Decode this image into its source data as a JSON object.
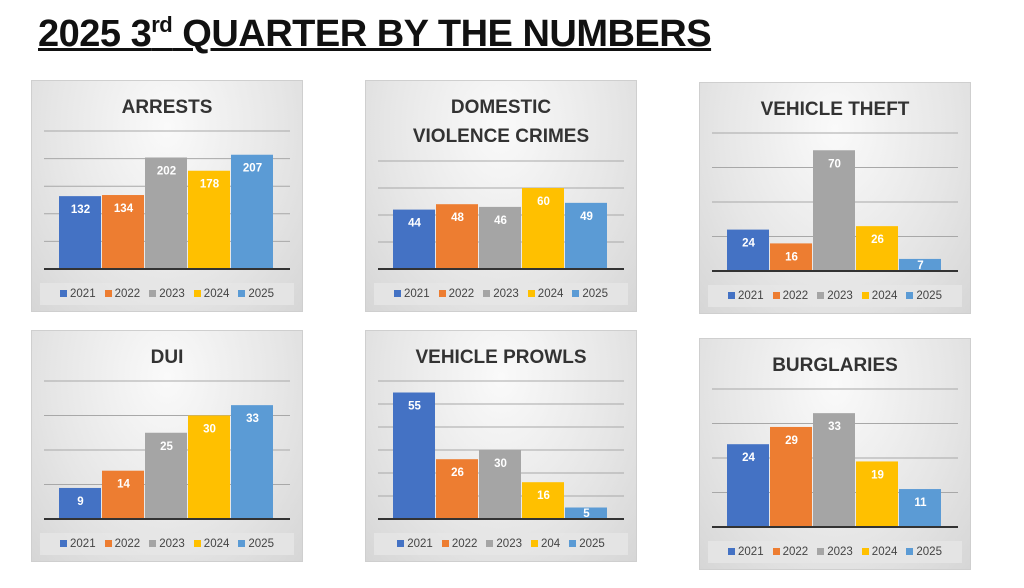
{
  "page_title": {
    "main1": "2025 3",
    "sup": "rd",
    "main2": " QUARTER BY THE NUMBERS"
  },
  "colors": [
    "#4472c4",
    "#ed7d31",
    "#a5a5a5",
    "#ffc000",
    "#5b9bd5"
  ],
  "chart_data": [
    {
      "type": "bar",
      "title": "ARRESTS",
      "categories": [
        "2021",
        "2022",
        "2023",
        "2024",
        "2025"
      ],
      "values": [
        132,
        134,
        202,
        178,
        207
      ],
      "ylim": [
        0,
        250
      ],
      "ystep": 50,
      "legend": [
        "2021",
        "2022",
        "2023",
        "2024",
        "2025"
      ],
      "legend_position": "bottom",
      "grid": true
    },
    {
      "type": "bar",
      "title": "DOMESTIC\nVIOLENCE  CRIMES",
      "categories": [
        "2021",
        "2022",
        "2023",
        "2024",
        "2025"
      ],
      "values": [
        44,
        48,
        46,
        60,
        49
      ],
      "ylim": [
        0,
        80
      ],
      "ystep": 20,
      "legend": [
        "2021",
        "2022",
        "2023",
        "2024",
        "2025"
      ],
      "legend_position": "bottom",
      "grid": true
    },
    {
      "type": "bar",
      "title": "VEHICLE THEFT",
      "categories": [
        "2021",
        "2022",
        "2023",
        "2024",
        "2025"
      ],
      "values": [
        24,
        16,
        70,
        26,
        7
      ],
      "ylim": [
        0,
        80
      ],
      "ystep": 20,
      "legend": [
        "2021",
        "2022",
        "2023",
        "2024",
        "2025"
      ],
      "legend_position": "bottom",
      "grid": true
    },
    {
      "type": "bar",
      "title": "DUI",
      "categories": [
        "2021",
        "2022",
        "2023",
        "2024",
        "2025"
      ],
      "values": [
        9,
        14,
        25,
        30,
        33
      ],
      "ylim": [
        0,
        40
      ],
      "ystep": 10,
      "legend": [
        "2021",
        "2022",
        "2023",
        "2024",
        "2025"
      ],
      "legend_position": "bottom",
      "grid": true
    },
    {
      "type": "bar",
      "title": "VEHICLE PROWLS",
      "categories": [
        "2021",
        "2022",
        "2023",
        "204",
        "2025"
      ],
      "values": [
        55,
        26,
        30,
        16,
        5
      ],
      "ylim": [
        0,
        60
      ],
      "ystep": 10,
      "legend": [
        "2021",
        "2022",
        "2023",
        "204",
        "2025"
      ],
      "legend_position": "bottom",
      "grid": true
    },
    {
      "type": "bar",
      "title": "BURGLARIES",
      "categories": [
        "2021",
        "2022",
        "2023",
        "2024",
        "2025"
      ],
      "values": [
        24,
        29,
        33,
        19,
        11
      ],
      "ylim": [
        0,
        40
      ],
      "ystep": 10,
      "legend": [
        "2021",
        "2022",
        "2023",
        "2024",
        "2025"
      ],
      "legend_position": "bottom",
      "grid": true
    }
  ]
}
